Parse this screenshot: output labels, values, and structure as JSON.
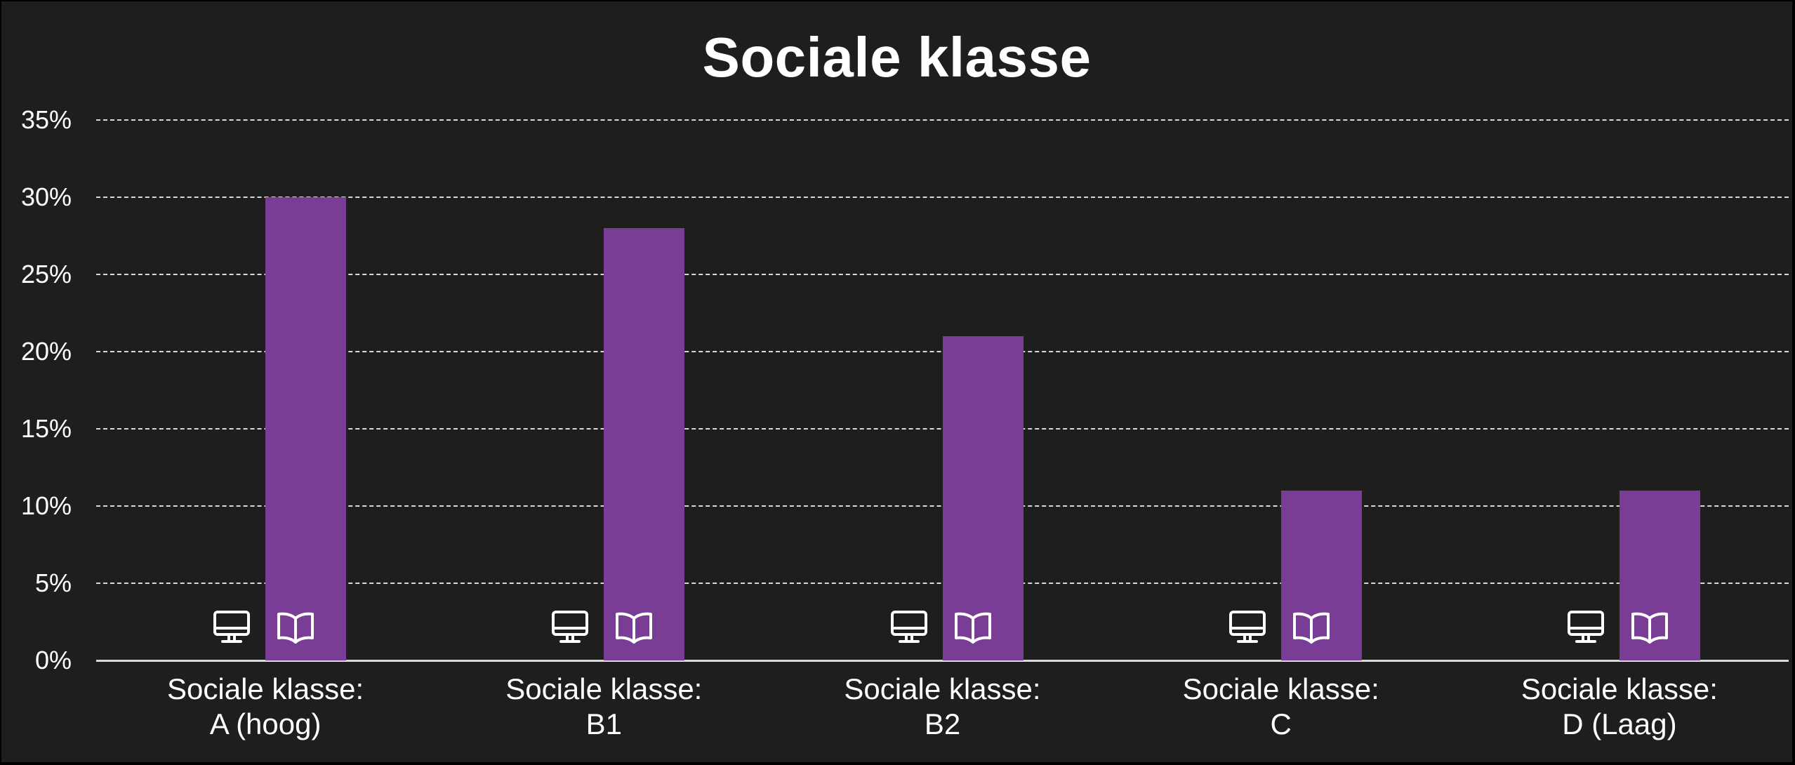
{
  "chart_data": {
    "type": "bar",
    "title": "Sociale klasse",
    "xlabel": "",
    "ylabel": "",
    "ylim": [
      0,
      35
    ],
    "yticks": [
      "0%",
      "5%",
      "10%",
      "15%",
      "20%",
      "25%",
      "30%",
      "35%"
    ],
    "grid": true,
    "categories": [
      "Sociale klasse: A (hoog)",
      "Sociale klasse: B1",
      "Sociale klasse: B2",
      "Sociale klasse: C",
      "Sociale klasse: D (Laag)"
    ],
    "series": [
      {
        "name": "desktop-icon-series",
        "icon": "desktop-monitor-icon",
        "color": "#1e1e1e",
        "values": [
          0,
          0,
          0,
          0,
          0
        ]
      },
      {
        "name": "book-icon-series",
        "icon": "open-book-icon",
        "color": "#7a3d96",
        "values": [
          30,
          28,
          21,
          11,
          11
        ]
      }
    ]
  },
  "title": "Sociale klasse",
  "yaxis": {
    "ticks": [
      "0%",
      "5%",
      "10%",
      "15%",
      "20%",
      "25%",
      "30%",
      "35%"
    ]
  },
  "xaxis": {
    "labels": [
      {
        "line1": "Sociale klasse:",
        "line2": "A (hoog)"
      },
      {
        "line1": "Sociale klasse:",
        "line2": "B1"
      },
      {
        "line1": "Sociale klasse:",
        "line2": "B2"
      },
      {
        "line1": "Sociale klasse:",
        "line2": "C"
      },
      {
        "line1": "Sociale klasse:",
        "line2": "D (Laag)"
      }
    ]
  },
  "colors": {
    "background": "#1e1e1e",
    "bar": "#7a3d96",
    "grid": "#d9d9d9",
    "text": "#ffffff"
  }
}
